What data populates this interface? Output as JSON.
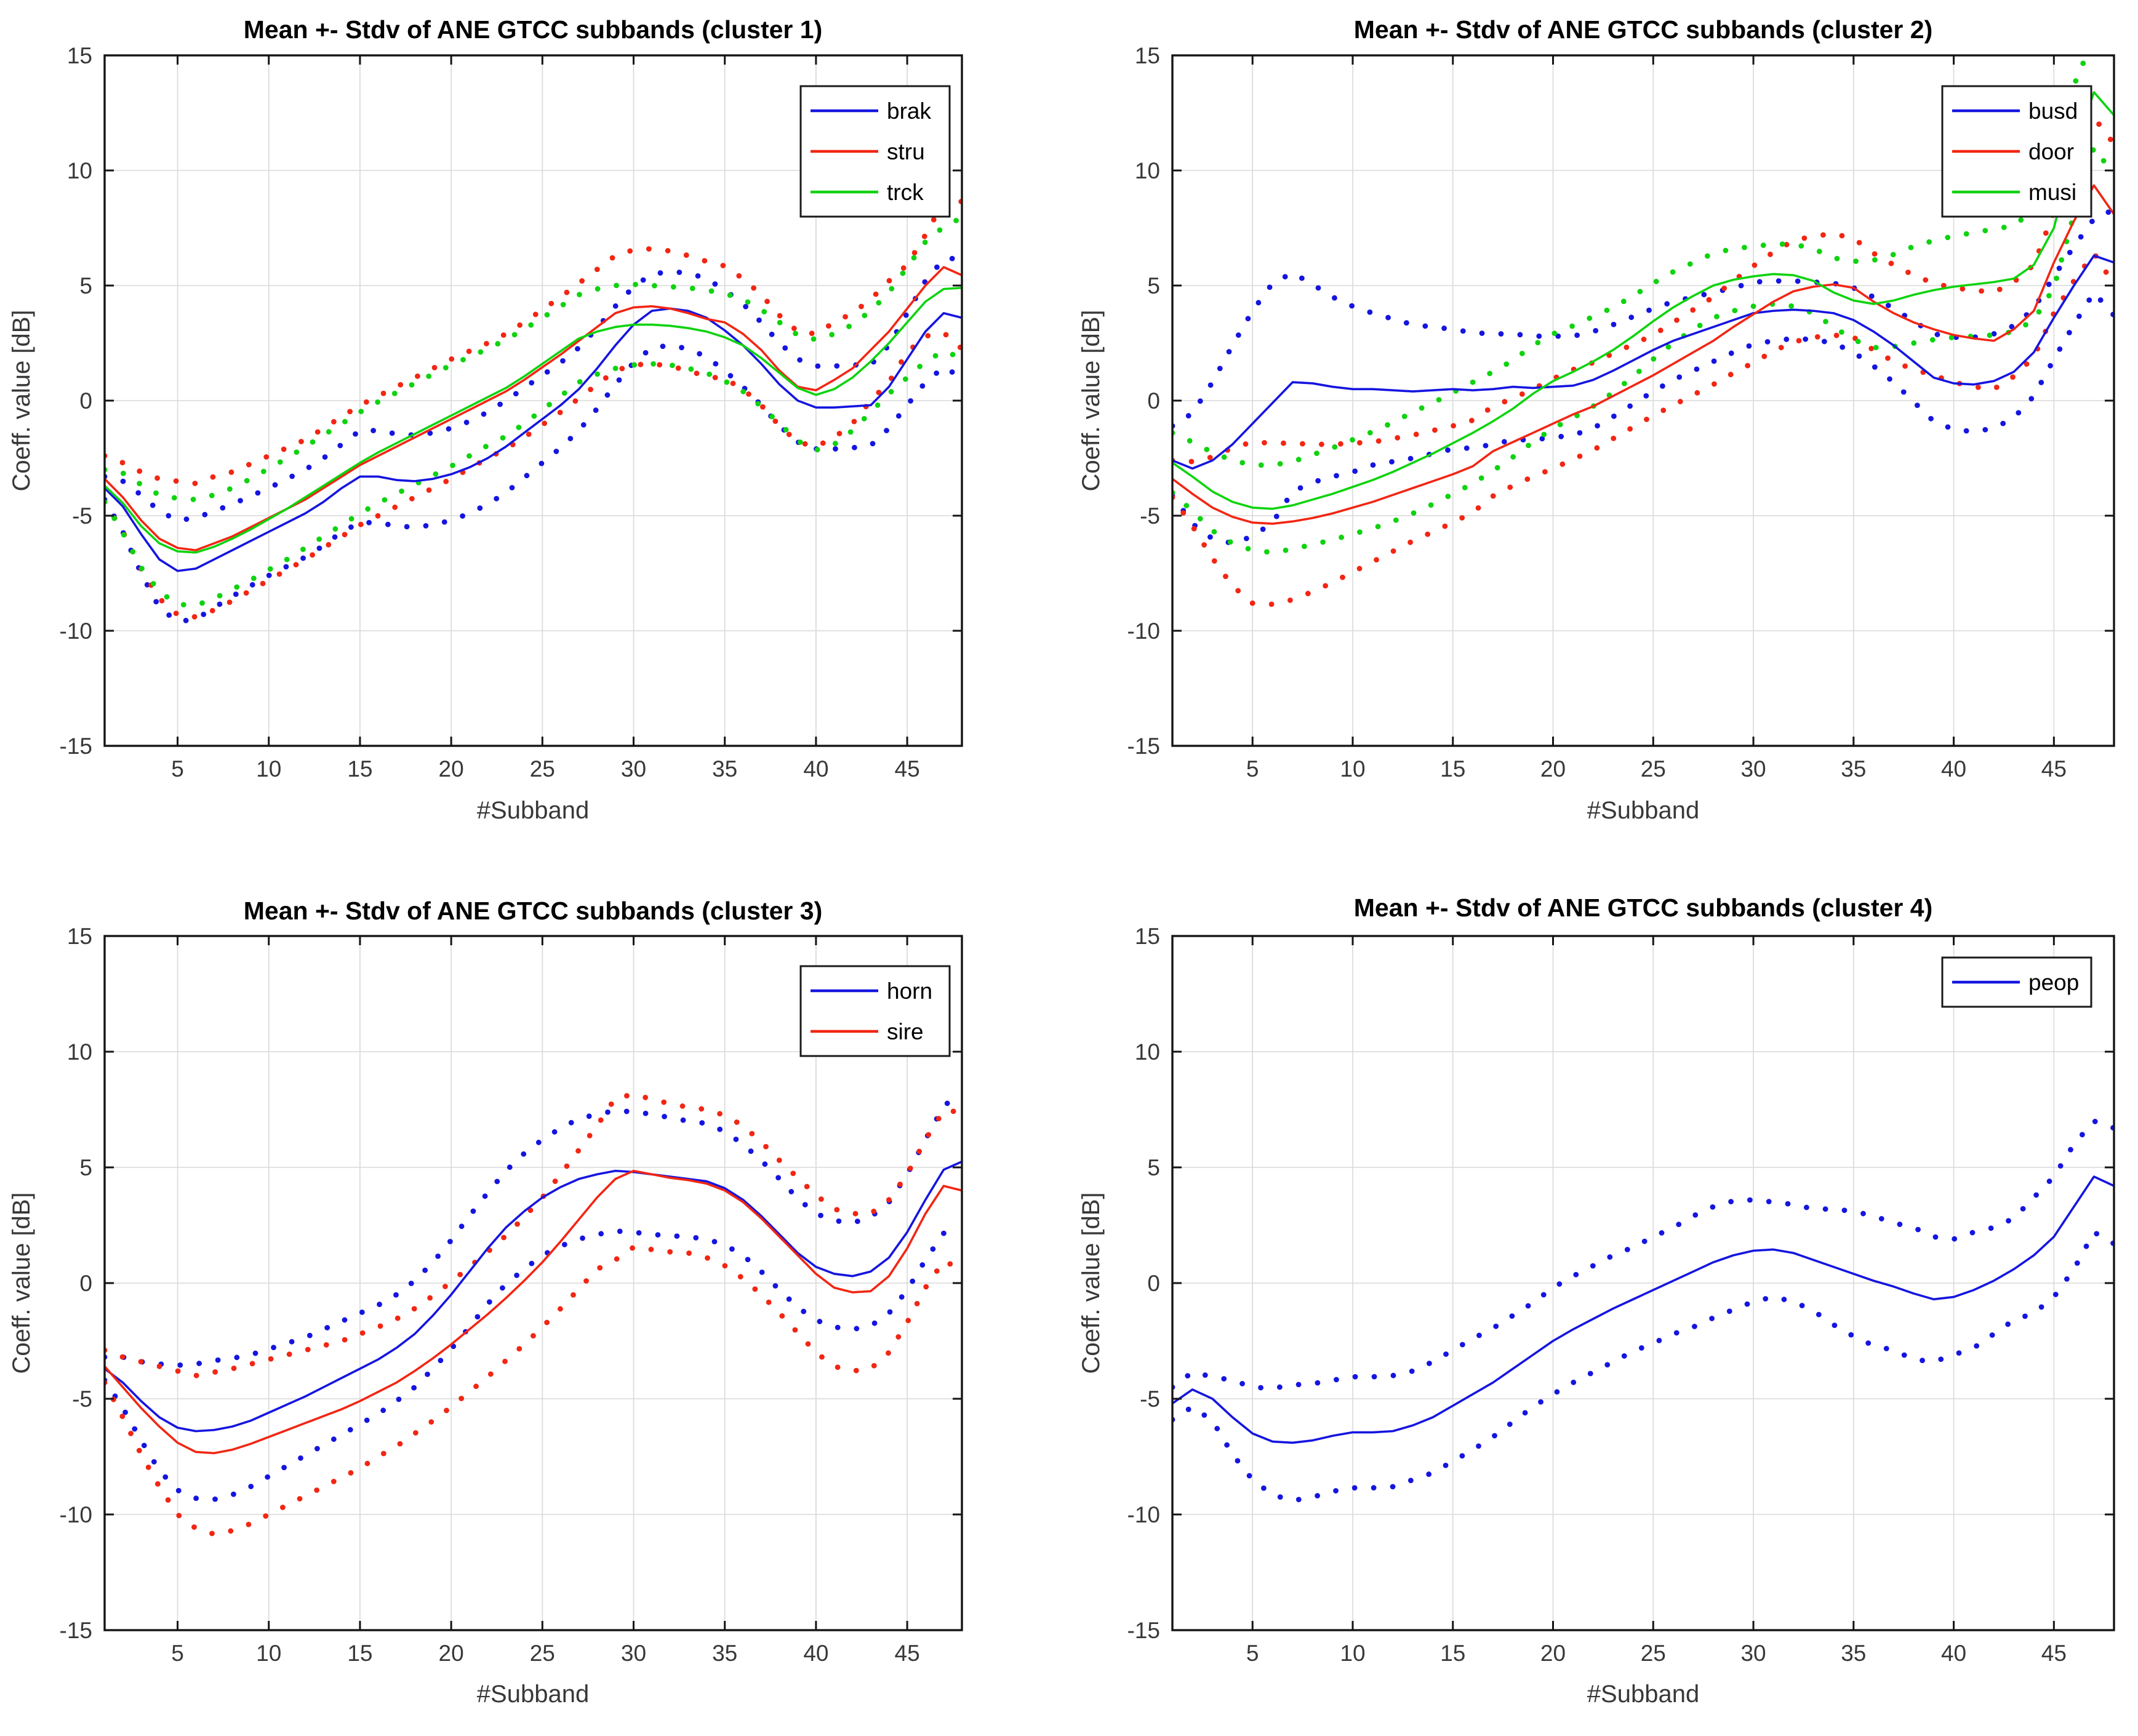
{
  "figure": {
    "background": "#ffffff",
    "grid_color": "#d9d9d9",
    "axis_color": "#141414",
    "tick_label_color": "#383838",
    "series_colors": {
      "blue": "#1515e0",
      "red": "#f22613",
      "green": "#0fd30f"
    }
  },
  "chart_data": [
    {
      "type": "line",
      "title": "Mean +- Stdv of ANE GTCC subbands (cluster 1)",
      "xlabel": "#Subband",
      "ylabel": "Coeff. value [dB]",
      "xlim": [
        1,
        48
      ],
      "ylim": [
        -15,
        15
      ],
      "xticks": [
        5,
        10,
        15,
        20,
        25,
        30,
        35,
        40,
        45
      ],
      "yticks": [
        -15,
        -10,
        -5,
        0,
        5,
        10,
        15
      ],
      "grid": true,
      "legend_position": "northeast",
      "band_style": "dotted_mean_plus_minus_std",
      "series": [
        {
          "name": "brak",
          "color": "#1515e0",
          "mean": [
            -3.8,
            -4.6,
            -5.8,
            -6.9,
            -7.4,
            -7.3,
            -6.9,
            -6.5,
            -6.1,
            -5.7,
            -5.3,
            -4.9,
            -4.4,
            -3.8,
            -3.3,
            -3.3,
            -3.45,
            -3.5,
            -3.4,
            -3.2,
            -2.9,
            -2.5,
            -2.0,
            -1.4,
            -0.8,
            -0.2,
            0.5,
            1.4,
            2.4,
            3.3,
            3.9,
            4.0,
            3.9,
            3.6,
            3.05,
            2.4,
            1.6,
            0.7,
            0.0,
            -0.3,
            -0.3,
            -0.25,
            -0.2,
            0.6,
            1.8,
            3.0,
            3.8,
            3.6
          ],
          "std": [
            0.5,
            1.1,
            1.7,
            2.1,
            2.2,
            2.2,
            2.1,
            2.0,
            1.95,
            1.9,
            1.9,
            1.9,
            1.9,
            1.9,
            2.0,
            2.0,
            2.0,
            2.0,
            2.0,
            2.0,
            2.0,
            2.0,
            2.0,
            1.95,
            1.9,
            1.85,
            1.8,
            1.75,
            1.7,
            1.65,
            1.6,
            1.6,
            1.65,
            1.7,
            1.75,
            1.8,
            1.8,
            1.8,
            1.8,
            1.8,
            1.8,
            1.8,
            1.75,
            1.8,
            2.0,
            2.2,
            2.35,
            2.6
          ]
        },
        {
          "name": "stru",
          "color": "#f22613",
          "mean": [
            -3.4,
            -4.2,
            -5.2,
            -6.0,
            -6.4,
            -6.5,
            -6.2,
            -5.9,
            -5.5,
            -5.1,
            -4.7,
            -4.3,
            -3.8,
            -3.3,
            -2.8,
            -2.4,
            -2.0,
            -1.6,
            -1.2,
            -0.8,
            -0.4,
            0.0,
            0.4,
            0.9,
            1.45,
            2.0,
            2.6,
            3.2,
            3.8,
            4.05,
            4.1,
            4.0,
            3.8,
            3.55,
            3.4,
            2.9,
            2.2,
            1.3,
            0.6,
            0.45,
            0.9,
            1.4,
            2.2,
            3.0,
            4.0,
            5.0,
            5.8,
            5.45
          ],
          "std": [
            1.0,
            1.5,
            2.1,
            2.6,
            2.9,
            2.9,
            2.9,
            2.8,
            2.75,
            2.7,
            2.65,
            2.6,
            2.6,
            2.6,
            2.6,
            2.6,
            2.6,
            2.6,
            2.6,
            2.6,
            2.55,
            2.5,
            2.5,
            2.5,
            2.5,
            2.5,
            2.5,
            2.5,
            2.5,
            2.5,
            2.5,
            2.5,
            2.5,
            2.5,
            2.45,
            2.4,
            2.4,
            2.4,
            2.4,
            2.45,
            2.5,
            2.4,
            2.2,
            2.2,
            1.9,
            2.2,
            2.85,
            3.2
          ]
        },
        {
          "name": "trck",
          "color": "#0fd30f",
          "mean": [
            -3.7,
            -4.45,
            -5.45,
            -6.2,
            -6.55,
            -6.6,
            -6.35,
            -6.0,
            -5.6,
            -5.15,
            -4.7,
            -4.2,
            -3.7,
            -3.2,
            -2.7,
            -2.25,
            -1.85,
            -1.45,
            -1.05,
            -0.65,
            -0.25,
            0.15,
            0.55,
            1.05,
            1.6,
            2.15,
            2.7,
            3.0,
            3.2,
            3.3,
            3.3,
            3.25,
            3.15,
            3.0,
            2.75,
            2.4,
            1.85,
            1.2,
            0.55,
            0.25,
            0.5,
            1.0,
            1.7,
            2.5,
            3.4,
            4.3,
            4.85,
            4.9
          ],
          "std": [
            0.7,
            1.3,
            1.8,
            2.1,
            2.3,
            2.3,
            2.25,
            2.2,
            2.2,
            2.2,
            2.2,
            2.2,
            2.2,
            2.2,
            2.2,
            2.2,
            2.2,
            2.2,
            2.2,
            2.2,
            2.15,
            2.1,
            2.1,
            2.05,
            2.0,
            1.95,
            1.9,
            1.85,
            1.8,
            1.75,
            1.7,
            1.7,
            1.75,
            1.8,
            1.9,
            2.0,
            2.1,
            2.2,
            2.3,
            2.4,
            2.4,
            2.3,
            2.2,
            2.2,
            2.4,
            2.6,
            2.7,
            3.05
          ]
        }
      ]
    },
    {
      "type": "line",
      "title": "Mean +- Stdv of ANE GTCC subbands (cluster 2)",
      "xlabel": "#Subband",
      "ylabel": "Coeff. value [dB]",
      "xlim": [
        1,
        48
      ],
      "ylim": [
        -15,
        15
      ],
      "xticks": [
        5,
        10,
        15,
        20,
        25,
        30,
        35,
        40,
        45
      ],
      "yticks": [
        -15,
        -10,
        -5,
        0,
        5,
        10,
        15
      ],
      "grid": true,
      "legend_position": "northeast",
      "band_style": "dotted_mean_plus_minus_std",
      "series": [
        {
          "name": "busd",
          "color": "#1515e0",
          "mean": [
            -2.6,
            -2.95,
            -2.6,
            -1.9,
            -1.0,
            -0.1,
            0.8,
            0.75,
            0.6,
            0.5,
            0.5,
            0.45,
            0.4,
            0.45,
            0.5,
            0.45,
            0.5,
            0.6,
            0.55,
            0.6,
            0.65,
            0.9,
            1.3,
            1.75,
            2.2,
            2.6,
            2.9,
            3.2,
            3.5,
            3.8,
            3.9,
            3.95,
            3.9,
            3.8,
            3.5,
            3.0,
            2.4,
            1.7,
            1.0,
            0.75,
            0.7,
            0.85,
            1.25,
            2.1,
            3.6,
            5.0,
            6.3,
            6.0
          ],
          "std": [
            1.5,
            2.4,
            3.4,
            4.3,
            4.9,
            5.2,
            4.75,
            4.3,
            3.9,
            3.6,
            3.3,
            3.1,
            2.9,
            2.75,
            2.6,
            2.5,
            2.4,
            2.3,
            2.25,
            2.2,
            2.15,
            2.1,
            2.0,
            1.9,
            1.8,
            1.7,
            1.6,
            1.5,
            1.4,
            1.35,
            1.3,
            1.25,
            1.25,
            1.3,
            1.4,
            1.5,
            1.6,
            1.75,
            1.9,
            2.0,
            2.05,
            2.05,
            2.0,
            1.9,
            1.8,
            1.7,
            1.6,
            2.3
          ]
        },
        {
          "name": "door",
          "color": "#f22613",
          "mean": [
            -3.4,
            -4.05,
            -4.65,
            -5.05,
            -5.3,
            -5.35,
            -5.25,
            -5.1,
            -4.9,
            -4.65,
            -4.4,
            -4.1,
            -3.8,
            -3.5,
            -3.2,
            -2.85,
            -2.2,
            -1.8,
            -1.4,
            -1.0,
            -0.6,
            -0.25,
            0.2,
            0.65,
            1.1,
            1.6,
            2.1,
            2.6,
            3.2,
            3.75,
            4.3,
            4.75,
            4.95,
            5.05,
            4.9,
            4.3,
            3.8,
            3.4,
            3.1,
            2.85,
            2.7,
            2.6,
            3.1,
            3.9,
            6.0,
            7.8,
            9.35,
            8.1
          ],
          "std": [
            0.8,
            1.4,
            2.2,
            3.0,
            3.5,
            3.5,
            3.4,
            3.2,
            3.0,
            2.8,
            2.6,
            2.45,
            2.3,
            2.2,
            2.1,
            2.0,
            1.95,
            1.9,
            1.9,
            1.95,
            1.95,
            1.9,
            1.85,
            1.8,
            1.75,
            1.8,
            1.85,
            1.9,
            2.0,
            2.1,
            2.15,
            2.2,
            2.2,
            2.2,
            2.15,
            2.1,
            2.1,
            2.05,
            2.0,
            2.05,
            2.1,
            2.1,
            2.05,
            2.0,
            2.2,
            2.6,
            2.95,
            3.05
          ]
        },
        {
          "name": "musi",
          "color": "#0fd30f",
          "mean": [
            -2.7,
            -3.3,
            -3.95,
            -4.4,
            -4.65,
            -4.7,
            -4.55,
            -4.3,
            -4.05,
            -3.75,
            -3.45,
            -3.1,
            -2.7,
            -2.3,
            -1.85,
            -1.4,
            -0.9,
            -0.35,
            0.3,
            0.85,
            1.25,
            1.7,
            2.2,
            2.8,
            3.45,
            4.05,
            4.55,
            5.0,
            5.25,
            5.4,
            5.5,
            5.45,
            5.2,
            4.7,
            4.35,
            4.2,
            4.35,
            4.6,
            4.8,
            4.95,
            5.05,
            5.15,
            5.3,
            5.9,
            7.5,
            10.9,
            13.4,
            12.4
          ],
          "std": [
            1.3,
            1.5,
            1.7,
            1.8,
            1.85,
            1.9,
            1.9,
            1.95,
            2.0,
            2.05,
            2.1,
            2.15,
            2.2,
            2.2,
            2.2,
            2.2,
            2.15,
            2.1,
            2.1,
            2.05,
            2.0,
            1.95,
            1.85,
            1.75,
            1.65,
            1.55,
            1.45,
            1.4,
            1.35,
            1.3,
            1.3,
            1.35,
            1.4,
            1.5,
            1.7,
            1.9,
            2.0,
            2.1,
            2.15,
            2.2,
            2.25,
            2.3,
            2.3,
            2.4,
            2.6,
            2.8,
            2.4,
            2.6
          ]
        }
      ]
    },
    {
      "type": "line",
      "title": "Mean +- Stdv of ANE GTCC subbands (cluster 3)",
      "xlabel": "#Subband",
      "ylabel": "Coeff. value [dB]",
      "xlim": [
        1,
        48
      ],
      "ylim": [
        -15,
        15
      ],
      "xticks": [
        5,
        10,
        15,
        20,
        25,
        30,
        35,
        40,
        45
      ],
      "yticks": [
        -15,
        -10,
        -5,
        0,
        5,
        10,
        15
      ],
      "grid": true,
      "legend_position": "northeast",
      "band_style": "dotted_mean_plus_minus_std",
      "series": [
        {
          "name": "horn",
          "color": "#1515e0",
          "mean": [
            -3.7,
            -4.3,
            -5.1,
            -5.8,
            -6.25,
            -6.4,
            -6.35,
            -6.2,
            -5.95,
            -5.6,
            -5.25,
            -4.9,
            -4.5,
            -4.1,
            -3.7,
            -3.3,
            -2.8,
            -2.2,
            -1.4,
            -0.5,
            0.5,
            1.5,
            2.4,
            3.1,
            3.7,
            4.15,
            4.5,
            4.7,
            4.85,
            4.8,
            4.7,
            4.6,
            4.5,
            4.4,
            4.1,
            3.6,
            2.9,
            2.1,
            1.3,
            0.7,
            0.4,
            0.3,
            0.5,
            1.1,
            2.2,
            3.6,
            4.9,
            5.25
          ],
          "std": [
            0.5,
            1.1,
            1.7,
            2.3,
            2.7,
            2.9,
            3.0,
            2.95,
            2.85,
            2.75,
            2.65,
            2.55,
            2.5,
            2.45,
            2.4,
            2.35,
            2.3,
            2.3,
            2.3,
            2.35,
            2.4,
            2.4,
            2.45,
            2.5,
            2.5,
            2.55,
            2.6,
            2.6,
            2.6,
            2.6,
            2.6,
            2.55,
            2.5,
            2.5,
            2.45,
            2.4,
            2.4,
            2.4,
            2.35,
            2.3,
            2.3,
            2.3,
            2.35,
            2.4,
            2.5,
            2.6,
            2.75,
            3.0
          ]
        },
        {
          "name": "sire",
          "color": "#f22613",
          "mean": [
            -3.6,
            -4.5,
            -5.4,
            -6.2,
            -6.9,
            -7.3,
            -7.35,
            -7.2,
            -6.95,
            -6.65,
            -6.35,
            -6.05,
            -5.75,
            -5.45,
            -5.1,
            -4.7,
            -4.3,
            -3.8,
            -3.25,
            -2.65,
            -2.0,
            -1.35,
            -0.65,
            0.1,
            0.9,
            1.8,
            2.75,
            3.7,
            4.5,
            4.85,
            4.7,
            4.55,
            4.45,
            4.3,
            4.0,
            3.5,
            2.8,
            2.0,
            1.2,
            0.4,
            -0.2,
            -0.4,
            -0.35,
            0.3,
            1.5,
            3.0,
            4.2,
            4.0
          ],
          "std": [
            0.7,
            1.3,
            2.0,
            2.6,
            3.1,
            3.3,
            3.5,
            3.5,
            3.45,
            3.35,
            3.25,
            3.15,
            3.05,
            2.95,
            2.9,
            2.8,
            2.75,
            2.7,
            2.7,
            2.7,
            2.7,
            2.7,
            2.7,
            2.75,
            2.8,
            2.9,
            3.0,
            3.1,
            3.5,
            3.3,
            3.25,
            3.2,
            3.15,
            3.2,
            3.25,
            3.3,
            3.3,
            3.3,
            3.35,
            3.4,
            3.4,
            3.4,
            3.35,
            3.3,
            3.2,
            3.2,
            3.25,
            3.4
          ]
        }
      ]
    },
    {
      "type": "line",
      "title": "Mean +- Stdv of ANE GTCC subbands (cluster 4)",
      "xlabel": "#Subband",
      "ylabel": "Coeff. value [dB]",
      "xlim": [
        1,
        48
      ],
      "ylim": [
        -15,
        15
      ],
      "xticks": [
        5,
        10,
        15,
        20,
        25,
        30,
        35,
        40,
        45
      ],
      "yticks": [
        -15,
        -10,
        -5,
        0,
        5,
        10,
        15
      ],
      "grid": true,
      "legend_position": "northeast",
      "band_style": "dotted_mean_plus_minus_std",
      "series": [
        {
          "name": "peop",
          "color": "#1515e0",
          "mean": [
            -5.2,
            -4.6,
            -5.0,
            -5.8,
            -6.5,
            -6.85,
            -6.9,
            -6.8,
            -6.6,
            -6.45,
            -6.45,
            -6.4,
            -6.15,
            -5.8,
            -5.3,
            -4.8,
            -4.3,
            -3.7,
            -3.1,
            -2.5,
            -2.0,
            -1.55,
            -1.1,
            -0.7,
            -0.3,
            0.1,
            0.5,
            0.9,
            1.2,
            1.4,
            1.45,
            1.3,
            1.0,
            0.7,
            0.4,
            0.1,
            -0.15,
            -0.45,
            -0.7,
            -0.6,
            -0.3,
            0.1,
            0.6,
            1.2,
            2.0,
            3.3,
            4.6,
            4.2
          ],
          "std": [
            0.7,
            0.75,
            0.95,
            1.6,
            2.0,
            2.3,
            2.5,
            2.45,
            2.4,
            2.4,
            2.4,
            2.4,
            2.35,
            2.4,
            2.4,
            2.4,
            2.35,
            2.3,
            2.25,
            2.3,
            2.3,
            2.3,
            2.3,
            2.25,
            2.3,
            2.3,
            2.4,
            2.4,
            2.35,
            2.2,
            2.05,
            2.1,
            2.2,
            2.5,
            2.7,
            2.8,
            2.75,
            2.85,
            2.7,
            2.5,
            2.5,
            2.3,
            2.2,
            2.5,
            2.6,
            2.7,
            2.4,
            2.5
          ]
        }
      ]
    }
  ]
}
